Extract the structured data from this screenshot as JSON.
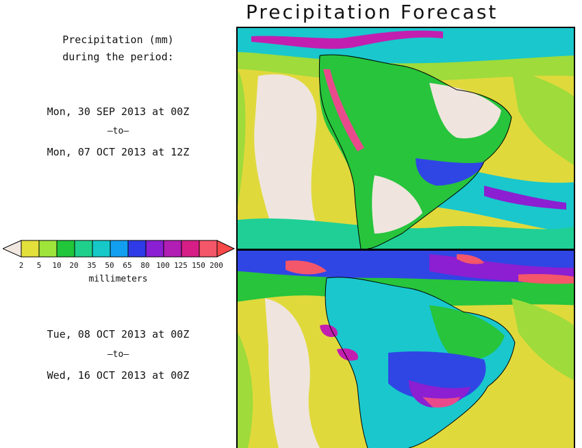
{
  "title": "Precipitation Forecast",
  "description": {
    "line1": "Precipitation (mm)",
    "line2": "during the period:"
  },
  "period1": {
    "start": "Mon, 30 SEP 2013 at 00Z",
    "sep": "–to–",
    "end": "Mon, 07 OCT 2013 at 12Z"
  },
  "period2": {
    "start": "Tue, 08 OCT 2013 at 00Z",
    "sep": "–to–",
    "end": "Wed, 16 OCT 2013 at 00Z"
  },
  "legend": {
    "units": "millimeters",
    "ticks": [
      "2",
      "5",
      "10",
      "20",
      "35",
      "50",
      "65",
      "80",
      "100",
      "125",
      "150",
      "200"
    ],
    "colors": [
      "#f1e8e2",
      "#e3df3b",
      "#9ee43a",
      "#21c63a",
      "#1fd08c",
      "#16c8c8",
      "#139fef",
      "#2e3be6",
      "#8a1fd3",
      "#b11eb4",
      "#d61e86",
      "#f4566a",
      "#f84848"
    ]
  },
  "map_colors": {
    "dry": "#efe5de",
    "yellow": "#e0d93c",
    "lightgreen": "#9edb3b",
    "green": "#27c43c",
    "teal": "#1fcf96",
    "cyan": "#19c7cd",
    "blue": "#2f46e4",
    "purple": "#8b1fd1",
    "magenta": "#c21fb0",
    "pink": "#e84a8b",
    "red": "#f4566a",
    "coast": "#000000"
  }
}
